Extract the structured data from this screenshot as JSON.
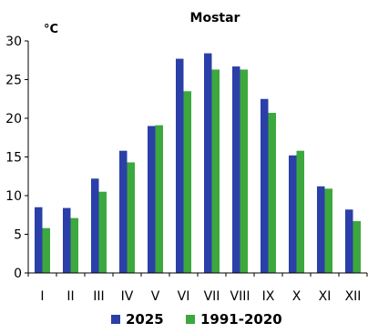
{
  "chart_data": {
    "type": "bar",
    "title": "Mostar",
    "ylabel": "°C",
    "xlabel": "",
    "categories": [
      "I",
      "II",
      "III",
      "IV",
      "V",
      "VI",
      "VII",
      "VIII",
      "IX",
      "X",
      "XI",
      "XII"
    ],
    "series": [
      {
        "name": "2025",
        "color": "#2B3FA8",
        "values": [
          8.5,
          8.4,
          12.2,
          15.8,
          19.0,
          27.7,
          28.4,
          26.7,
          22.5,
          15.2,
          11.2,
          8.2
        ]
      },
      {
        "name": "1991-2020",
        "color": "#3DA83D",
        "values": [
          5.8,
          7.1,
          10.5,
          14.3,
          19.1,
          23.5,
          26.3,
          26.3,
          20.7,
          15.8,
          10.9,
          6.7
        ]
      }
    ],
    "ylim": [
      0,
      30
    ],
    "yticks": [
      0,
      5,
      10,
      15,
      20,
      25,
      30
    ],
    "grid": false,
    "legend": "bottom"
  }
}
